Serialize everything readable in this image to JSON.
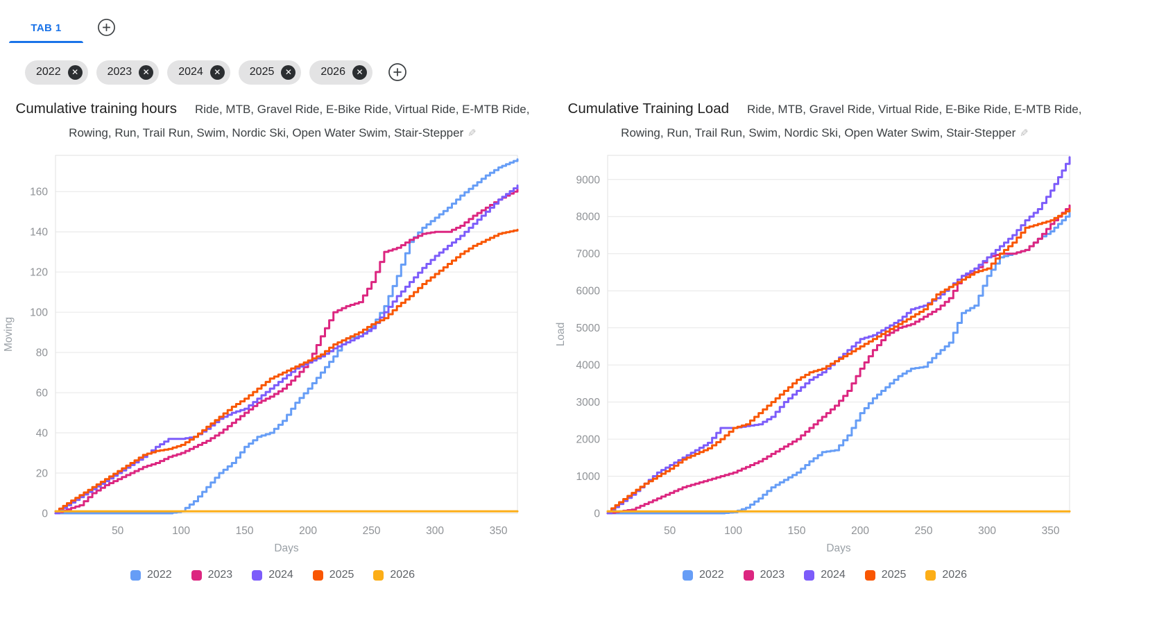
{
  "tabbar": {
    "active_tab": "TAB 1",
    "add_tab_icon": "plus-circle"
  },
  "filters": {
    "chips": [
      "2022",
      "2023",
      "2024",
      "2025",
      "2026"
    ],
    "remove_icon_glyph": "✕",
    "add_filter_icon": "plus-circle"
  },
  "icons": {
    "edit_glyph": "✎"
  },
  "colors": {
    "accent_blue": "#1a73e8",
    "series_2022": "#669df6",
    "series_2023": "#dc2680",
    "series_2024": "#7c5cfa",
    "series_2025": "#f95602",
    "series_2026": "#fcae17",
    "grid": "#e6e6e6",
    "plot_border": "#e0e0e0"
  },
  "chart_data": [
    {
      "type": "line",
      "title": "Cumulative training hours",
      "subtitle": "Ride, MTB, Gravel Ride, E-Bike Ride, Virtual Ride, E-MTB Ride, Rowing, Run, Trail Run, Swim, Nordic Ski, Open Water Swim, Stair-Stepper",
      "xlabel": "Days",
      "ylabel": "Moving",
      "xlim": [
        1,
        365
      ],
      "ylim": [
        0,
        178
      ],
      "xticks": [
        50,
        100,
        150,
        200,
        250,
        300,
        350
      ],
      "yticks": [
        0,
        20,
        40,
        60,
        80,
        100,
        120,
        140,
        160
      ],
      "grid": "horizontal",
      "legend_position": "bottom",
      "x": [
        1,
        10,
        20,
        30,
        40,
        50,
        60,
        70,
        80,
        90,
        100,
        110,
        120,
        130,
        140,
        150,
        160,
        170,
        180,
        190,
        200,
        210,
        220,
        230,
        240,
        250,
        260,
        270,
        280,
        290,
        300,
        310,
        320,
        330,
        340,
        350,
        365
      ],
      "series": [
        {
          "name": "2022",
          "color": "#669df6",
          "values": [
            0,
            0,
            0,
            0,
            0,
            0,
            0,
            0,
            0,
            0,
            1,
            6,
            13,
            20,
            25,
            33,
            38,
            40,
            46,
            55,
            62,
            70,
            78,
            87,
            88,
            93,
            103,
            118,
            135,
            142,
            147,
            152,
            158,
            163,
            168,
            172,
            176
          ]
        },
        {
          "name": "2023",
          "color": "#dc2680",
          "values": [
            0,
            2,
            4,
            10,
            14,
            17,
            20,
            23,
            25,
            28,
            30,
            33,
            36,
            40,
            45,
            50,
            55,
            58,
            62,
            68,
            75,
            88,
            100,
            103,
            105,
            115,
            130,
            132,
            136,
            139,
            140,
            140,
            143,
            148,
            152,
            156,
            161
          ]
        },
        {
          "name": "2024",
          "color": "#7c5cfa",
          "values": [
            0,
            4,
            8,
            12,
            16,
            20,
            24,
            28,
            33,
            37,
            37,
            38,
            42,
            47,
            50,
            52,
            57,
            62,
            67,
            72,
            75,
            78,
            82,
            85,
            88,
            92,
            100,
            108,
            115,
            122,
            128,
            133,
            138,
            144,
            150,
            156,
            163
          ]
        },
        {
          "name": "2025",
          "color": "#f95602",
          "values": [
            1,
            5,
            9,
            13,
            17,
            21,
            25,
            29,
            31,
            32,
            34,
            38,
            43,
            48,
            53,
            57,
            62,
            67,
            70,
            73,
            76,
            79,
            84,
            87,
            90,
            94,
            97,
            103,
            108,
            114,
            119,
            124,
            129,
            133,
            136,
            139,
            141
          ]
        },
        {
          "name": "2026",
          "color": "#fcae17",
          "values": [
            1,
            1,
            1,
            1,
            1,
            1,
            1,
            1,
            1,
            1,
            1,
            1,
            1,
            1,
            1,
            1,
            1,
            1,
            1,
            1,
            1,
            1,
            1,
            1,
            1,
            1,
            1,
            1,
            1,
            1,
            1,
            1,
            1,
            1,
            1,
            1,
            1
          ]
        }
      ]
    },
    {
      "type": "line",
      "title": "Cumulative Training Load",
      "subtitle": "Ride, MTB, Gravel Ride, Virtual Ride, E-Bike Ride, E-MTB Ride, Rowing, Run, Trail Run, Swim, Nordic Ski, Open Water Swim, Stair-Stepper",
      "xlabel": "Days",
      "ylabel": "Load",
      "xlim": [
        1,
        365
      ],
      "ylim": [
        0,
        9650
      ],
      "xticks": [
        50,
        100,
        150,
        200,
        250,
        300,
        350
      ],
      "yticks": [
        0,
        1000,
        2000,
        3000,
        4000,
        5000,
        6000,
        7000,
        8000,
        9000
      ],
      "grid": "horizontal",
      "legend_position": "bottom",
      "x": [
        1,
        10,
        20,
        30,
        40,
        50,
        60,
        70,
        80,
        90,
        100,
        110,
        120,
        130,
        140,
        150,
        160,
        170,
        180,
        190,
        200,
        210,
        220,
        230,
        240,
        250,
        260,
        270,
        280,
        290,
        300,
        310,
        320,
        330,
        340,
        350,
        365
      ],
      "series": [
        {
          "name": "2022",
          "color": "#669df6",
          "values": [
            0,
            0,
            0,
            0,
            0,
            0,
            0,
            0,
            0,
            0,
            30,
            150,
            400,
            700,
            900,
            1100,
            1400,
            1650,
            1700,
            2100,
            2700,
            3100,
            3400,
            3700,
            3900,
            3950,
            4300,
            4600,
            5400,
            5600,
            6400,
            6900,
            7000,
            7100,
            7400,
            7600,
            8100
          ]
        },
        {
          "name": "2023",
          "color": "#dc2680",
          "values": [
            0,
            50,
            100,
            250,
            400,
            550,
            700,
            800,
            900,
            1000,
            1100,
            1250,
            1400,
            1600,
            1800,
            2000,
            2300,
            2600,
            2900,
            3300,
            3900,
            4400,
            4800,
            5000,
            5100,
            5300,
            5500,
            5800,
            6400,
            6500,
            6900,
            7000,
            7000,
            7100,
            7400,
            7800,
            8300
          ]
        },
        {
          "name": "2024",
          "color": "#7c5cfa",
          "values": [
            0,
            250,
            500,
            800,
            1100,
            1300,
            1500,
            1700,
            1900,
            2300,
            2300,
            2350,
            2400,
            2600,
            3000,
            3300,
            3600,
            3800,
            4100,
            4400,
            4700,
            4800,
            5000,
            5200,
            5500,
            5600,
            5800,
            6100,
            6400,
            6600,
            6900,
            7200,
            7500,
            7900,
            8200,
            8700,
            9600
          ]
        },
        {
          "name": "2025",
          "color": "#f95602",
          "values": [
            50,
            300,
            550,
            800,
            1000,
            1200,
            1450,
            1600,
            1750,
            2000,
            2300,
            2400,
            2700,
            3000,
            3300,
            3600,
            3800,
            3900,
            4100,
            4300,
            4500,
            4700,
            4900,
            5100,
            5300,
            5500,
            5900,
            6100,
            6300,
            6500,
            6600,
            7000,
            7300,
            7700,
            7800,
            7900,
            8200
          ]
        },
        {
          "name": "2026",
          "color": "#fcae17",
          "values": [
            50,
            50,
            50,
            50,
            50,
            50,
            50,
            50,
            50,
            50,
            50,
            50,
            50,
            50,
            50,
            50,
            50,
            50,
            50,
            50,
            50,
            50,
            50,
            50,
            50,
            50,
            50,
            50,
            50,
            50,
            50,
            50,
            50,
            50,
            50,
            50,
            50
          ]
        }
      ]
    }
  ]
}
